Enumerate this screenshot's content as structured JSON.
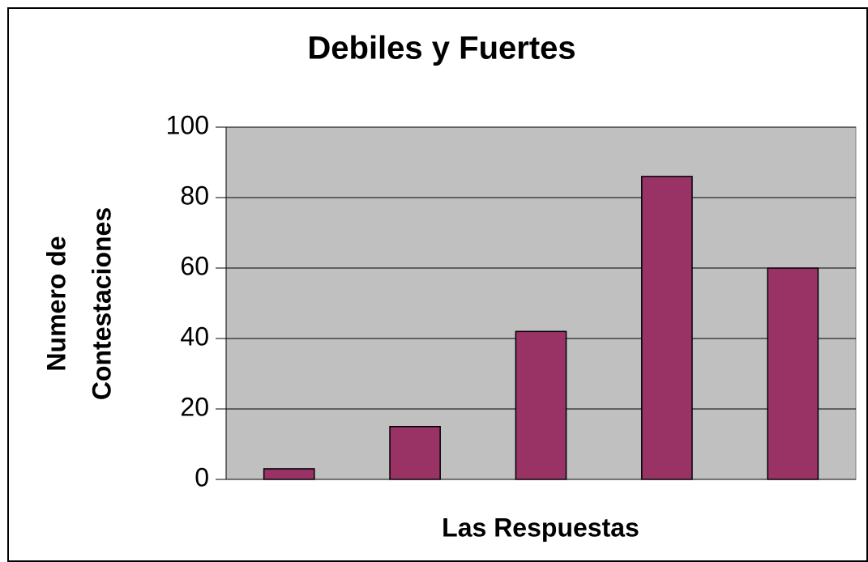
{
  "chart_data": {
    "type": "bar",
    "title": "Debiles y Fuertes",
    "xlabel": "Las Respuestas",
    "ylabel": [
      "Numero de",
      "Contestaciones"
    ],
    "categories": [
      null,
      null,
      null,
      null,
      null
    ],
    "values": [
      3,
      15,
      42,
      86,
      60
    ],
    "color": "#993366",
    "ylim": [
      0,
      100
    ],
    "yticks": [
      0,
      20,
      40,
      60,
      80,
      100
    ],
    "grid": true
  }
}
